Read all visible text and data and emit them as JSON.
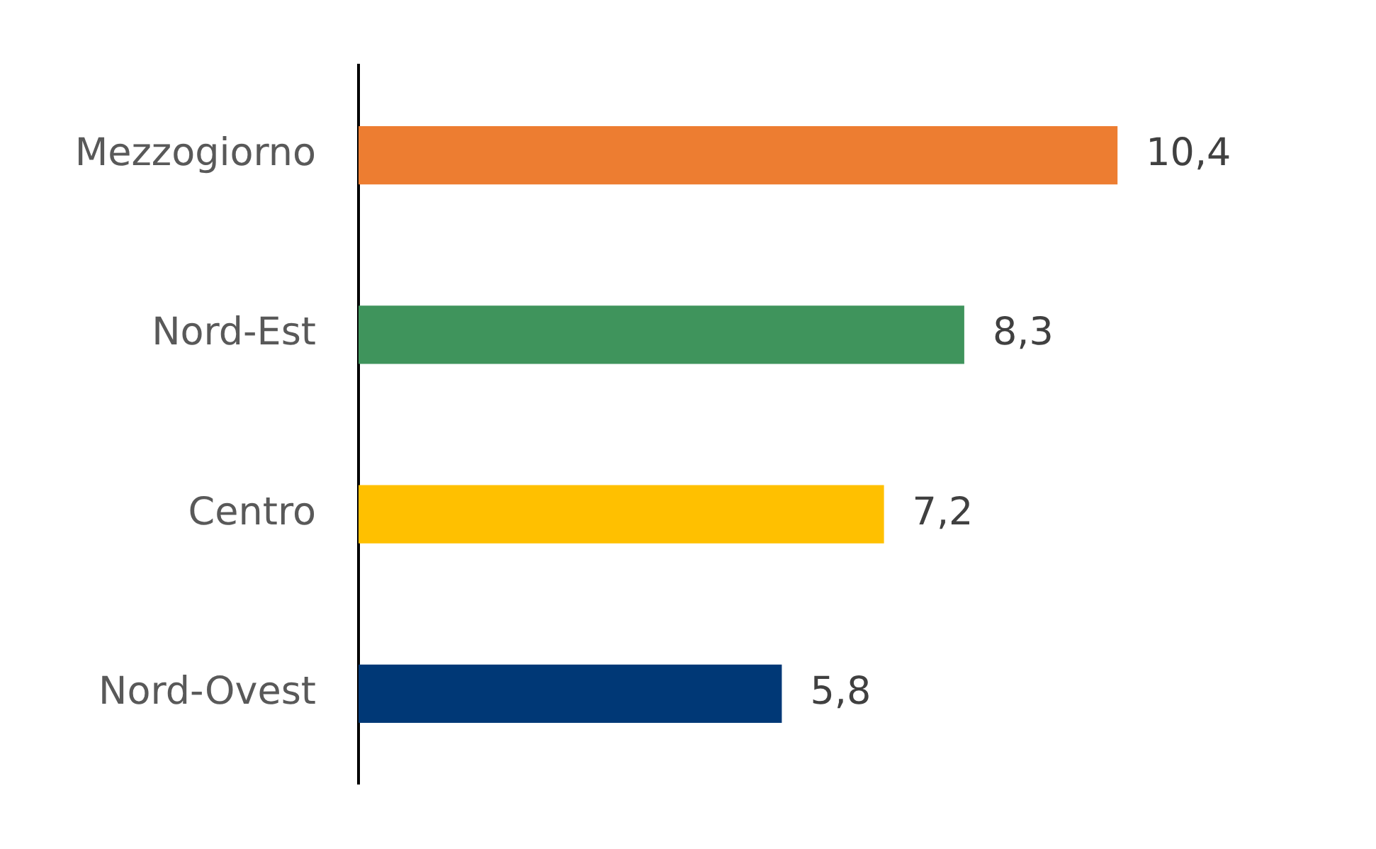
{
  "chart_data": {
    "type": "bar",
    "orientation": "horizontal",
    "categories": [
      "Mezzogiorno",
      "Nord-Est",
      "Centro",
      "Nord-Ovest"
    ],
    "values": [
      10.4,
      8.3,
      7.2,
      5.8
    ],
    "colors": [
      "#ed7d31",
      "#3f945c",
      "#ffc000",
      "#003876"
    ],
    "value_labels": [
      "10,4",
      "8,3",
      "7,2",
      "5,8"
    ],
    "tick_labels": "y",
    "legend": false
  }
}
